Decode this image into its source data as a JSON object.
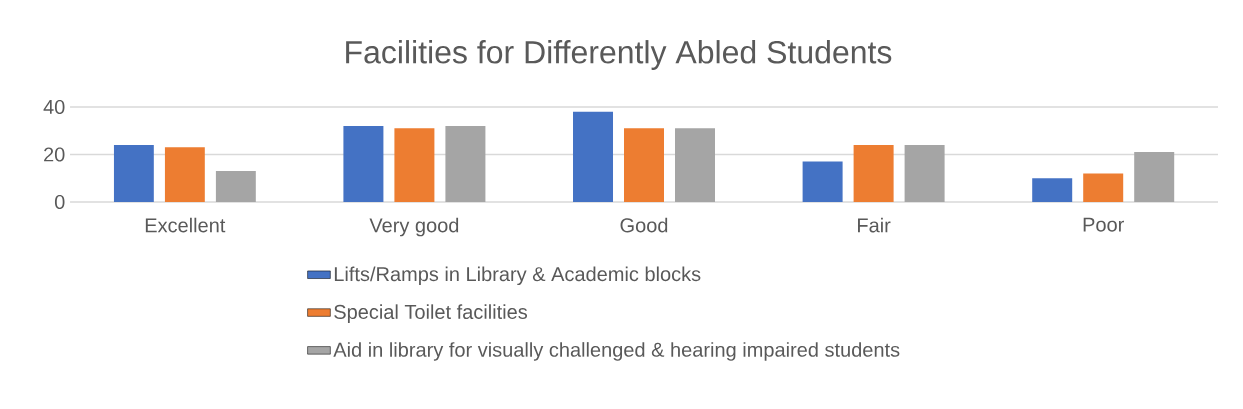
{
  "chart_data": {
    "type": "bar",
    "title": "Facilities for Differently Abled Students",
    "categories": [
      "Excellent",
      "Very good",
      "Good",
      "Fair",
      "Poor"
    ],
    "series": [
      {
        "name": "Lifts/Ramps in Library & Academic blocks",
        "color": "#4472c4",
        "values": [
          24,
          32,
          38,
          17,
          10
        ]
      },
      {
        "name": "Special Toilet facilities",
        "color": "#ed7d31",
        "values": [
          23,
          31,
          31,
          24,
          12
        ]
      },
      {
        "name": "Aid in library for visually challenged & hearing impaired students",
        "color": "#a5a5a5",
        "values": [
          13,
          32,
          31,
          24,
          21
        ]
      }
    ],
    "ylim": [
      0,
      40
    ],
    "yticks": [
      0,
      20,
      40
    ],
    "grid": "y",
    "legend": "bottom"
  }
}
